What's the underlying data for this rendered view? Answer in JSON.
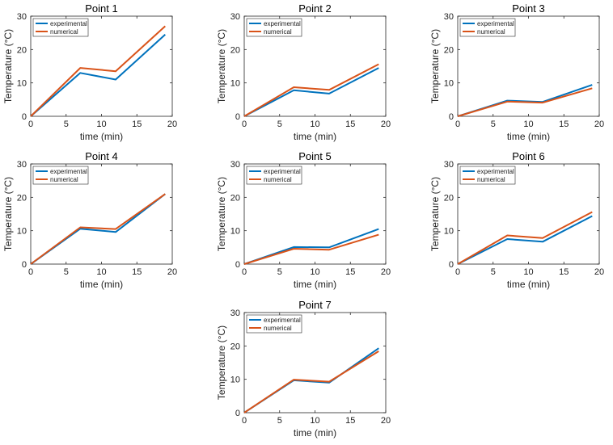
{
  "colors": {
    "experimental": "#0072BD",
    "numerical": "#D95319",
    "axis": "#262626"
  },
  "chart_data": [
    {
      "type": "line",
      "title": "Point 1",
      "xlabel": "time (min)",
      "ylabel": "Temperature (°C)",
      "xlim": [
        0,
        20
      ],
      "ylim": [
        0,
        30
      ],
      "xticks": [
        0,
        5,
        10,
        15,
        20
      ],
      "yticks": [
        0,
        10,
        20,
        30
      ],
      "legend": "top-left",
      "legend_entries": [
        "experimental",
        "numerical"
      ],
      "series": [
        {
          "name": "experimental",
          "x": [
            0,
            7,
            12,
            19
          ],
          "y": [
            0,
            13,
            11,
            24.5
          ]
        },
        {
          "name": "numerical",
          "x": [
            0,
            7,
            12,
            19
          ],
          "y": [
            0,
            14.5,
            13.5,
            27
          ]
        }
      ]
    },
    {
      "type": "line",
      "title": "Point 2",
      "xlabel": "time (min)",
      "ylabel": "Temperature (°C)",
      "xlim": [
        0,
        20
      ],
      "ylim": [
        0,
        30
      ],
      "xticks": [
        0,
        5,
        10,
        15,
        20
      ],
      "yticks": [
        0,
        10,
        20,
        30
      ],
      "legend": "top-left",
      "legend_entries": [
        "experimental",
        "numerical"
      ],
      "series": [
        {
          "name": "experimental",
          "x": [
            0,
            7,
            12,
            19
          ],
          "y": [
            0,
            7.8,
            6.8,
            14.5
          ]
        },
        {
          "name": "numerical",
          "x": [
            0,
            7,
            12,
            19
          ],
          "y": [
            0,
            8.7,
            7.9,
            15.6
          ]
        }
      ]
    },
    {
      "type": "line",
      "title": "Point 3",
      "xlabel": "time (min)",
      "ylabel": "Temperature (°C)",
      "xlim": [
        0,
        20
      ],
      "ylim": [
        0,
        30
      ],
      "xticks": [
        0,
        5,
        10,
        15,
        20
      ],
      "yticks": [
        0,
        10,
        20,
        30
      ],
      "legend": "top-left",
      "legend_entries": [
        "experimental",
        "numerical"
      ],
      "series": [
        {
          "name": "experimental",
          "x": [
            0,
            7,
            12,
            19
          ],
          "y": [
            0,
            4.7,
            4.3,
            9.4
          ]
        },
        {
          "name": "numerical",
          "x": [
            0,
            7,
            12,
            19
          ],
          "y": [
            0,
            4.4,
            4.1,
            8.4
          ]
        }
      ]
    },
    {
      "type": "line",
      "title": "Point 4",
      "xlabel": "time (min)",
      "ylabel": "Temperature (°C)",
      "xlim": [
        0,
        20
      ],
      "ylim": [
        0,
        30
      ],
      "xticks": [
        0,
        5,
        10,
        15,
        20
      ],
      "yticks": [
        0,
        10,
        20,
        30
      ],
      "legend": "top-left",
      "legend_entries": [
        "experimental",
        "numerical"
      ],
      "series": [
        {
          "name": "experimental",
          "x": [
            0,
            7,
            12,
            19
          ],
          "y": [
            0,
            10.6,
            9.6,
            21
          ]
        },
        {
          "name": "numerical",
          "x": [
            0,
            7,
            12,
            19
          ],
          "y": [
            0,
            11,
            10.5,
            21
          ]
        }
      ]
    },
    {
      "type": "line",
      "title": "Point 5",
      "xlabel": "time (min)",
      "ylabel": "Temperature (°C)",
      "xlim": [
        0,
        20
      ],
      "ylim": [
        0,
        30
      ],
      "xticks": [
        0,
        5,
        10,
        15,
        20
      ],
      "yticks": [
        0,
        10,
        20,
        30
      ],
      "legend": "top-left",
      "legend_entries": [
        "experimental",
        "numerical"
      ],
      "series": [
        {
          "name": "experimental",
          "x": [
            0,
            7,
            12,
            19
          ],
          "y": [
            0,
            5.1,
            5,
            10.5
          ]
        },
        {
          "name": "numerical",
          "x": [
            0,
            7,
            12,
            19
          ],
          "y": [
            0,
            4.6,
            4.3,
            8.8
          ]
        }
      ]
    },
    {
      "type": "line",
      "title": "Point 6",
      "xlabel": "time (min)",
      "ylabel": "Temperature (°C)",
      "xlim": [
        0,
        20
      ],
      "ylim": [
        0,
        30
      ],
      "xticks": [
        0,
        5,
        10,
        15,
        20
      ],
      "yticks": [
        0,
        10,
        20,
        30
      ],
      "legend": "top-left",
      "legend_entries": [
        "experimental",
        "numerical"
      ],
      "series": [
        {
          "name": "experimental",
          "x": [
            0,
            7,
            12,
            19
          ],
          "y": [
            0,
            7.5,
            6.7,
            14.4
          ]
        },
        {
          "name": "numerical",
          "x": [
            0,
            7,
            12,
            19
          ],
          "y": [
            0,
            8.6,
            7.8,
            15.6
          ]
        }
      ]
    },
    {
      "type": "line",
      "title": "Point 7",
      "xlabel": "time (min)",
      "ylabel": "Temperature (°C)",
      "xlim": [
        0,
        20
      ],
      "ylim": [
        0,
        30
      ],
      "xticks": [
        0,
        5,
        10,
        15,
        20
      ],
      "yticks": [
        0,
        10,
        20,
        30
      ],
      "legend": "top-left",
      "legend_entries": [
        "experimental",
        "numerical"
      ],
      "series": [
        {
          "name": "experimental",
          "x": [
            0,
            7,
            12,
            19
          ],
          "y": [
            0,
            9.7,
            9,
            19.3
          ]
        },
        {
          "name": "numerical",
          "x": [
            0,
            7,
            12,
            19
          ],
          "y": [
            0,
            9.9,
            9.3,
            18.4
          ]
        }
      ]
    }
  ]
}
